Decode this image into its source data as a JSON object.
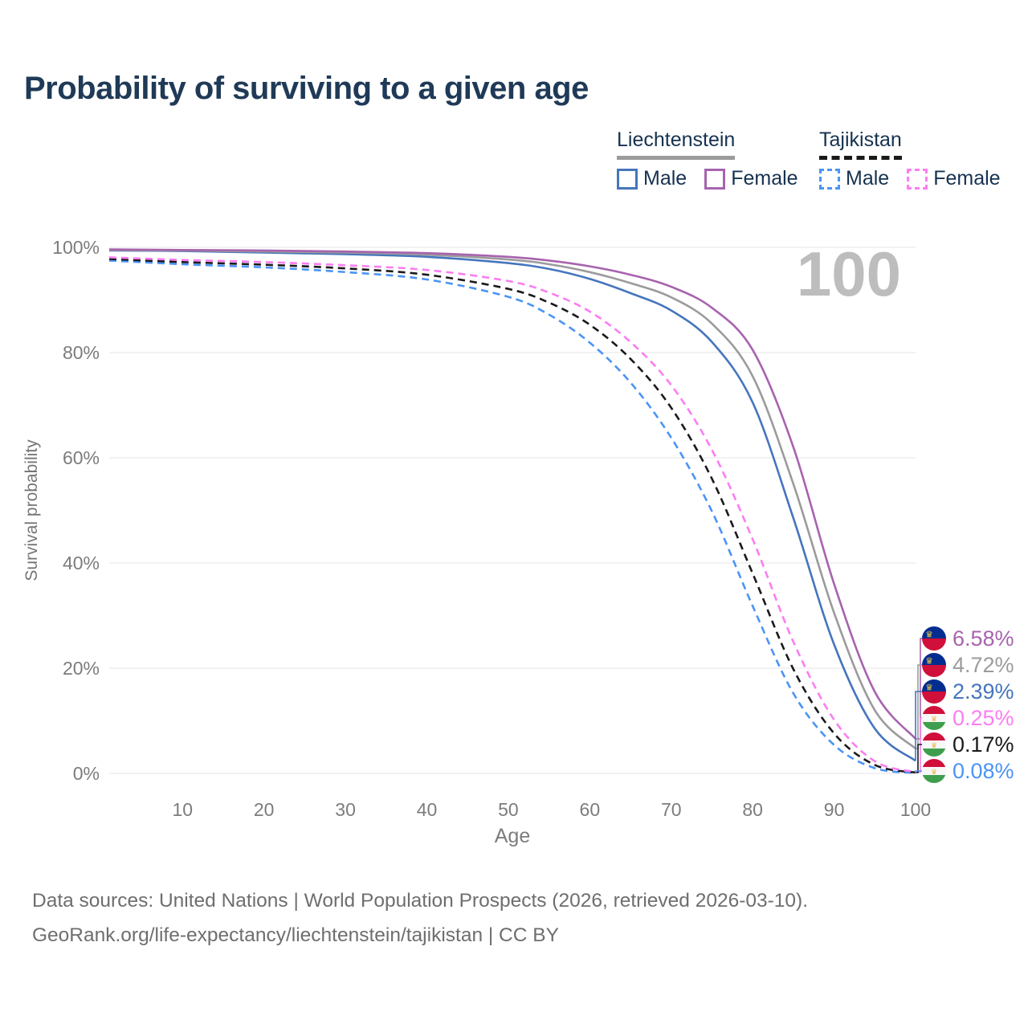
{
  "title": "Probability of surviving to a given age",
  "legend": {
    "groups": [
      {
        "label": "Liechtenstein",
        "style": "solid",
        "items": [
          {
            "label": "Male",
            "color": "#4575bd"
          },
          {
            "label": "Female",
            "color": "#a763ae"
          }
        ]
      },
      {
        "label": "Tajikistan",
        "style": "dashed",
        "items": [
          {
            "label": "Male",
            "color": "#4b94f5"
          },
          {
            "label": "Female",
            "color": "#fb7df2"
          }
        ]
      }
    ]
  },
  "chart_data": {
    "type": "line",
    "title": "Probability of surviving to a given age",
    "xlabel": "Age",
    "ylabel": "Survival probability",
    "age_marker": "100",
    "x_ticks": [
      "10",
      "20",
      "30",
      "40",
      "50",
      "60",
      "70",
      "80",
      "90",
      "100"
    ],
    "y_ticks": [
      "0%",
      "20%",
      "40%",
      "60%",
      "80%",
      "100%"
    ],
    "xlim": [
      1,
      100
    ],
    "ylim": [
      0,
      100
    ],
    "grid": "horizontal",
    "legend_position": "top-right",
    "series": [
      {
        "id": "li-male",
        "name": "Liechtenstein Male",
        "country": "Liechtenstein",
        "sex": "male",
        "style": "solid",
        "color": "#4575bd",
        "final_value": "2.39%",
        "points": [
          [
            1,
            99.4
          ],
          [
            10,
            99.3
          ],
          [
            20,
            99.0
          ],
          [
            30,
            98.7
          ],
          [
            40,
            98.2
          ],
          [
            50,
            97.0
          ],
          [
            55,
            95.9
          ],
          [
            60,
            94.0
          ],
          [
            65,
            91.3
          ],
          [
            70,
            88.0
          ],
          [
            75,
            82.0
          ],
          [
            80,
            70.5
          ],
          [
            85,
            48.5
          ],
          [
            90,
            24.5
          ],
          [
            95,
            8.5
          ],
          [
            100,
            2.39
          ]
        ]
      },
      {
        "id": "li-all",
        "name": "Liechtenstein total",
        "country": "Liechtenstein",
        "sex": "all",
        "style": "solid",
        "color": "#9b9b9b",
        "final_value": "4.72%",
        "points": [
          [
            1,
            99.5
          ],
          [
            10,
            99.4
          ],
          [
            20,
            99.2
          ],
          [
            30,
            99.0
          ],
          [
            40,
            98.6
          ],
          [
            50,
            97.7
          ],
          [
            55,
            96.8
          ],
          [
            60,
            95.3
          ],
          [
            65,
            93.2
          ],
          [
            70,
            90.5
          ],
          [
            75,
            85.5
          ],
          [
            80,
            75.5
          ],
          [
            85,
            55.0
          ],
          [
            90,
            30.5
          ],
          [
            95,
            12.0
          ],
          [
            100,
            4.72
          ]
        ]
      },
      {
        "id": "li-female",
        "name": "Liechtenstein Female",
        "country": "Liechtenstein",
        "sex": "female",
        "style": "solid",
        "color": "#a763ae",
        "final_value": "6.58%",
        "points": [
          [
            1,
            99.6
          ],
          [
            10,
            99.5
          ],
          [
            20,
            99.4
          ],
          [
            30,
            99.2
          ],
          [
            40,
            98.9
          ],
          [
            50,
            98.2
          ],
          [
            55,
            97.5
          ],
          [
            60,
            96.4
          ],
          [
            65,
            94.8
          ],
          [
            70,
            92.5
          ],
          [
            75,
            88.5
          ],
          [
            80,
            80.5
          ],
          [
            85,
            62.0
          ],
          [
            90,
            36.0
          ],
          [
            95,
            15.5
          ],
          [
            100,
            6.58
          ]
        ]
      },
      {
        "id": "tj-male",
        "name": "Tajikistan Male",
        "country": "Tajikistan",
        "sex": "male",
        "style": "dashed",
        "color": "#4b94f5",
        "final_value": "0.08%",
        "points": [
          [
            1,
            97.5
          ],
          [
            10,
            96.8
          ],
          [
            20,
            96.2
          ],
          [
            30,
            95.3
          ],
          [
            40,
            93.9
          ],
          [
            50,
            90.6
          ],
          [
            55,
            87.2
          ],
          [
            60,
            81.9
          ],
          [
            65,
            74.3
          ],
          [
            70,
            63.8
          ],
          [
            75,
            49.8
          ],
          [
            80,
            31.8
          ],
          [
            85,
            15.2
          ],
          [
            90,
            5.4
          ],
          [
            95,
            1.0
          ],
          [
            100,
            0.08
          ]
        ]
      },
      {
        "id": "tj-all",
        "name": "Tajikistan total",
        "country": "Tajikistan",
        "sex": "all",
        "style": "dashed",
        "color": "#1a1a1a",
        "final_value": "0.17%",
        "points": [
          [
            1,
            97.8
          ],
          [
            10,
            97.2
          ],
          [
            20,
            96.7
          ],
          [
            30,
            96.0
          ],
          [
            40,
            94.8
          ],
          [
            50,
            92.1
          ],
          [
            55,
            89.5
          ],
          [
            60,
            85.3
          ],
          [
            65,
            78.8
          ],
          [
            70,
            69.5
          ],
          [
            75,
            56.0
          ],
          [
            80,
            38.0
          ],
          [
            85,
            19.8
          ],
          [
            90,
            7.6
          ],
          [
            95,
            1.6
          ],
          [
            100,
            0.17
          ]
        ]
      },
      {
        "id": "tj-female",
        "name": "Tajikistan Female",
        "country": "Tajikistan",
        "sex": "female",
        "style": "dashed",
        "color": "#fb7df2",
        "final_value": "0.25%",
        "points": [
          [
            1,
            98.1
          ],
          [
            10,
            97.6
          ],
          [
            20,
            97.2
          ],
          [
            30,
            96.6
          ],
          [
            40,
            95.7
          ],
          [
            50,
            93.6
          ],
          [
            55,
            91.4
          ],
          [
            60,
            87.8
          ],
          [
            65,
            82.0
          ],
          [
            70,
            73.8
          ],
          [
            75,
            61.5
          ],
          [
            80,
            44.5
          ],
          [
            85,
            25.0
          ],
          [
            90,
            10.2
          ],
          [
            95,
            2.3
          ],
          [
            100,
            0.25
          ]
        ]
      }
    ],
    "end_labels": [
      {
        "series_id": "li-female",
        "value": "6.58%",
        "color": "#a763ae",
        "flag": "liechtenstein"
      },
      {
        "series_id": "li-all",
        "value": "4.72%",
        "color": "#9b9b9b",
        "flag": "liechtenstein"
      },
      {
        "series_id": "li-male",
        "value": "2.39%",
        "color": "#4575bd",
        "flag": "liechtenstein"
      },
      {
        "series_id": "tj-female",
        "value": "0.25%",
        "color": "#fb7df2",
        "flag": "tajikistan"
      },
      {
        "series_id": "tj-all",
        "value": "0.17%",
        "color": "#1a1a1a",
        "flag": "tajikistan"
      },
      {
        "series_id": "tj-male",
        "value": "0.08%",
        "color": "#4b94f5",
        "flag": "tajikistan"
      }
    ]
  },
  "footer": {
    "line1": "Data sources: United Nations | World Population Prospects (2026, retrieved 2026-03-10).",
    "line2": "GeoRank.org/life-expectancy/liechtenstein/tajikistan | CC BY"
  }
}
